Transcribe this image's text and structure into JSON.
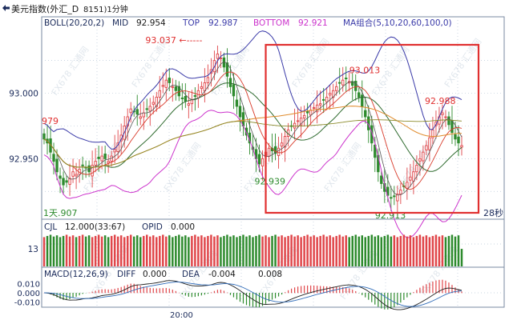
{
  "header": {
    "title_prefix": "美元指数(外汇_D",
    "code": "8151)1分钟",
    "nav_icon": "left-right-arrow-icon"
  },
  "boll_header": {
    "label": "BOLL(20,20,2)",
    "mid_label": "MID",
    "mid_value": "92.954",
    "top_label": "TOP",
    "top_value": "92.987",
    "bottom_label": "BOTTOM",
    "bottom_value": "92.921",
    "ma_label": "MA组合(5,10,20,60,100,0)"
  },
  "volume_header": {
    "label": "CJL",
    "value": "12.000(33:67)",
    "opid_label": "OPID",
    "opid_value": "0.000"
  },
  "macd_header": {
    "label": "MACD(12,26,9)",
    "diff_label": "DIFF",
    "diff_value": "0.000",
    "dea_label": "DEA",
    "dea_value": "-0.004",
    "macd_value": "0.008"
  },
  "watermark_text": "FX678 汇通网",
  "colors": {
    "up": "#e0464a",
    "down": "#2e8b2e",
    "mid": "#2f6b2f",
    "upper": "#3a3aa8",
    "lower": "#cc33cc",
    "ma_red": "#d83a2a",
    "ma_orange": "#e08a2a",
    "highlight": "#e03030",
    "grid": "#b8c7d8",
    "axis_text": "#1a2a5a"
  },
  "chart_data": [
    {
      "type": "candlestick",
      "x": [
        0,
        1,
        2,
        3,
        4,
        5,
        6,
        7,
        8,
        9,
        10,
        11,
        12,
        13,
        14,
        15,
        16,
        17,
        18,
        19,
        20,
        21,
        22,
        23,
        24,
        25,
        26,
        27,
        28,
        29,
        30,
        31,
        32,
        33,
        34,
        35,
        36,
        37,
        38,
        39,
        40,
        41,
        42,
        43,
        44,
        45,
        46,
        47,
        48,
        49,
        50,
        51,
        52,
        53,
        54,
        55,
        56,
        57,
        58,
        59,
        60,
        61,
        62,
        63,
        64,
        65,
        66,
        67,
        68,
        69,
        70,
        71,
        72,
        73,
        74,
        75,
        76,
        77,
        78,
        79,
        80,
        81,
        82,
        83,
        84,
        85,
        86,
        87,
        88,
        89,
        90,
        91,
        92,
        93,
        94,
        95,
        96,
        97,
        98,
        99,
        100,
        101,
        102,
        103,
        104,
        105,
        106,
        107,
        108,
        109,
        110,
        111,
        112,
        113,
        114,
        115,
        116,
        117,
        118,
        119,
        120,
        121,
        122,
        123,
        124,
        125,
        126,
        127,
        128,
        129,
        130
      ],
      "close": [
        92.965,
        92.962,
        92.955,
        92.948,
        92.94,
        92.935,
        92.93,
        92.932,
        92.935,
        92.94,
        92.938,
        92.942,
        92.945,
        92.943,
        92.94,
        92.945,
        92.948,
        92.95,
        92.952,
        92.95,
        92.948,
        92.952,
        92.957,
        92.962,
        92.968,
        92.975,
        92.982,
        92.988,
        92.986,
        92.984,
        92.982,
        92.985,
        92.988,
        92.99,
        92.993,
        92.997,
        93.002,
        93.006,
        93.01,
        93.008,
        93.005,
        93.002,
        92.998,
        92.996,
        92.994,
        92.992,
        92.995,
        92.998,
        93.002,
        93.005,
        93.008,
        93.012,
        93.018,
        93.025,
        93.03,
        93.027,
        93.02,
        93.013,
        93.005,
        92.998,
        92.99,
        92.982,
        92.975,
        92.968,
        92.962,
        92.957,
        92.95,
        92.946,
        92.95,
        92.955,
        92.958,
        92.956,
        92.954,
        92.958,
        92.962,
        92.967,
        92.972,
        92.975,
        92.977,
        92.979,
        92.981,
        92.983,
        92.985,
        92.987,
        92.989,
        92.991,
        92.992,
        92.995,
        92.997,
        93.0,
        93.002,
        93.005,
        93.008,
        93.01,
        93.011,
        93.009,
        93.006,
        93.002,
        92.997,
        92.99,
        92.982,
        92.972,
        92.962,
        92.951,
        92.94,
        92.931,
        92.925,
        92.922,
        92.92,
        92.921,
        92.923,
        92.926,
        92.929,
        92.932,
        92.936,
        92.94,
        92.945,
        92.95,
        92.955,
        92.96,
        92.966,
        92.972,
        92.978,
        92.982,
        92.985,
        92.982,
        92.976,
        92.97,
        92.965,
        92.962,
        92.96
      ],
      "annotations": [
        {
          "text": "93.037 ←-----",
          "x": 54.5,
          "y": 93.037
        },
        {
          "text": "93.013",
          "x": 99,
          "y": 93.013
        },
        {
          "text": "92.988",
          "x": 125,
          "y": 92.988
        },
        {
          "text": "92.939",
          "x": 72,
          "y": 92.939
        },
        {
          "text": "92.913",
          "x": 107,
          "y": 92.913
        },
        {
          "text": "979",
          "x": 0,
          "y": 92.979
        },
        {
          "text": "1天.907",
          "x": 3,
          "y": 92.907
        },
        {
          "text": "28秒",
          "x": 128,
          "y": 92.907
        }
      ],
      "y_ticks": [
        93.0,
        92.95
      ],
      "y_tick_labels": [
        "93.000",
        "92.950"
      ],
      "ylim": [
        92.905,
        93.048
      ],
      "highlight_region": {
        "x_start": 70,
        "x_end": 131
      }
    },
    {
      "type": "bar",
      "name": "CJL",
      "y_tick_labels": [
        "13"
      ],
      "ylim": [
        0,
        14
      ]
    },
    {
      "type": "bar",
      "name": "MACD",
      "y_ticks": [
        0.01,
        0.0,
        -0.01
      ],
      "y_tick_labels": [
        "0.010",
        "0.000",
        "-0.010"
      ],
      "ylim": [
        -0.014,
        0.014
      ]
    }
  ],
  "time_axis": {
    "label": "20:00"
  }
}
